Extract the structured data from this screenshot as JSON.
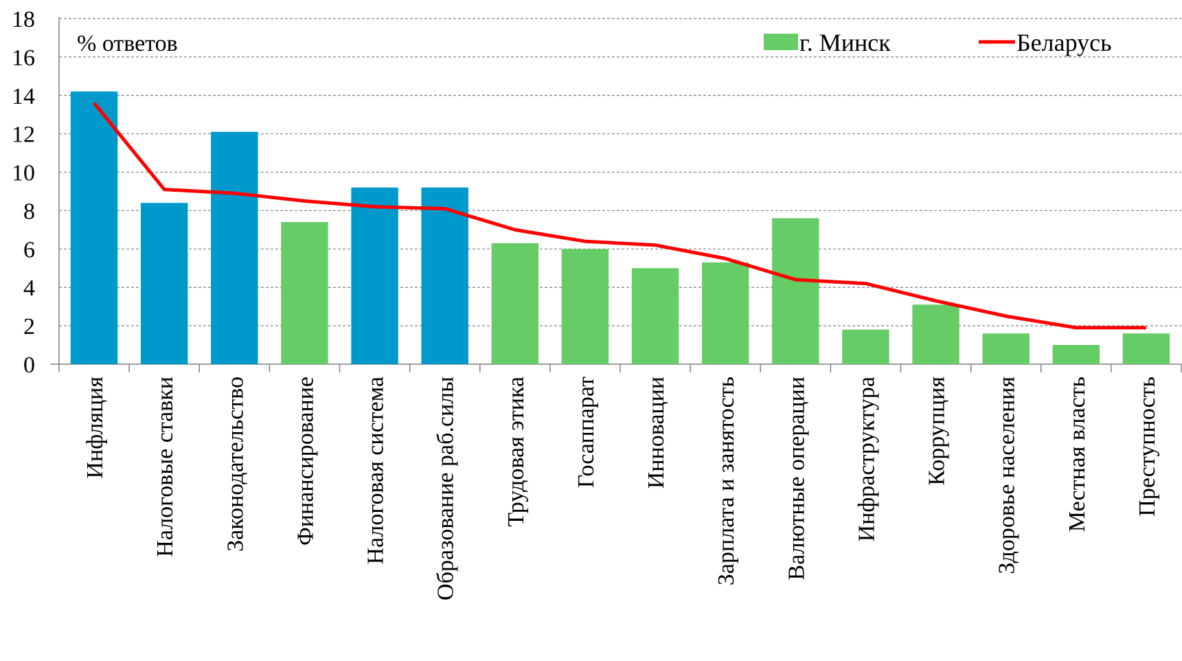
{
  "chart_data": {
    "type": "bar",
    "ylabel": "% ответов",
    "ylim": [
      0,
      18
    ],
    "yticks": [
      0,
      2,
      4,
      6,
      8,
      10,
      12,
      14,
      16,
      18
    ],
    "grid": true,
    "legend_position": "top-right",
    "categories": [
      "Инфляция",
      "Налоговые ставки",
      "Законодательство",
      "Финансирование",
      "Налоговая система",
      "Образование раб.силы",
      "Трудовая этика",
      "Госаппарат",
      "Инновации",
      "Зарплата и занятость",
      "Валютные операции",
      "Инфраструктура",
      "Коррупция",
      "Здоровье населения",
      "Местная власть",
      "Преступность"
    ],
    "series": [
      {
        "name": "г. Минск",
        "kind": "bar",
        "color": "#66CC66",
        "highlight_color": "#0099CC",
        "highlighted": [
          true,
          true,
          true,
          false,
          true,
          true,
          false,
          false,
          false,
          false,
          false,
          false,
          false,
          false,
          false,
          false
        ],
        "values": [
          14.2,
          8.4,
          12.1,
          7.4,
          9.2,
          9.2,
          6.3,
          6.0,
          5.0,
          5.3,
          7.6,
          1.8,
          3.1,
          1.6,
          1.0,
          1.6
        ]
      },
      {
        "name": "Беларусь",
        "kind": "line",
        "color": "#FF0000",
        "values": [
          13.6,
          9.1,
          8.9,
          8.5,
          8.2,
          8.1,
          7.0,
          6.4,
          6.2,
          5.5,
          4.4,
          4.2,
          3.3,
          2.5,
          1.9,
          1.9
        ]
      }
    ]
  }
}
